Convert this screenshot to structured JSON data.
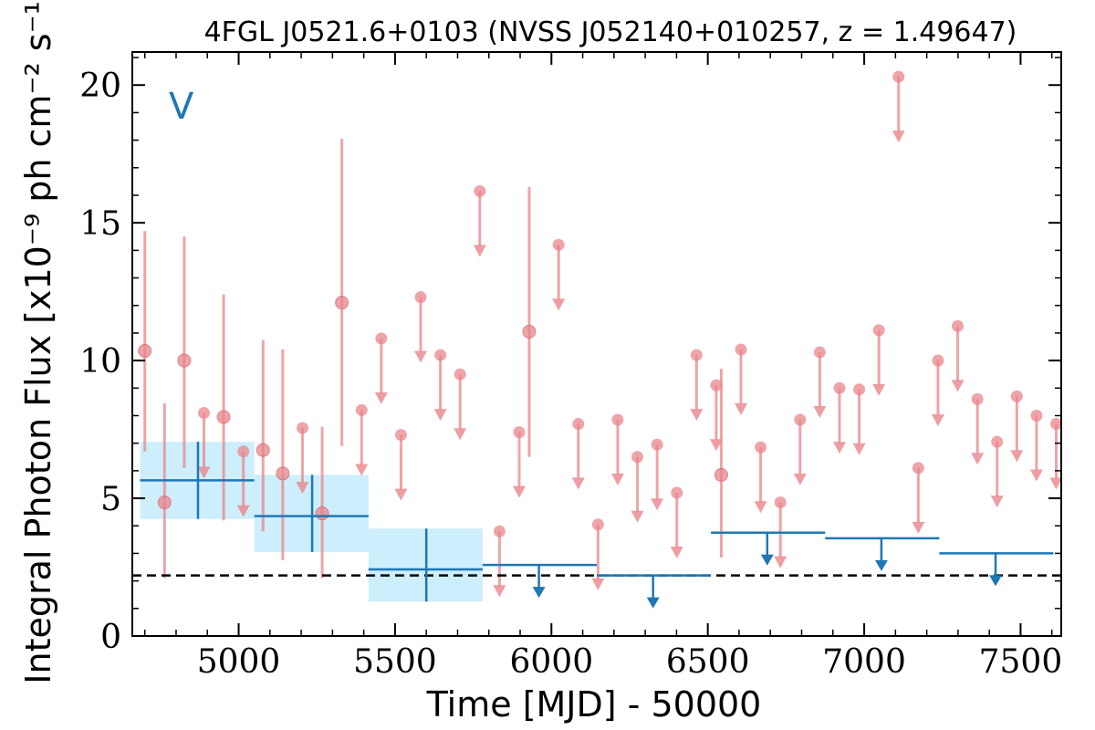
{
  "chart_data": {
    "type": "scatter",
    "title": "4FGL J0521.6+0103 (NVSS J052140+010257, z = 1.49647)",
    "xlabel": "Time [MJD] - 50000",
    "ylabel": "Integral Photon Flux [x10⁻⁹ ph cm⁻² s⁻¹]",
    "xlim": [
      4660,
      7630
    ],
    "ylim": [
      0,
      21.2
    ],
    "xticks": [
      5000,
      5500,
      6000,
      6500,
      7000,
      7500
    ],
    "yticks": [
      0,
      5,
      10,
      15,
      20
    ],
    "panel_label": "V",
    "grid": false,
    "reference_line": 2.2,
    "colors": {
      "short": "#e8868b",
      "long": "#1f77b4",
      "band": "#cdeefc",
      "reference": "#000000"
    },
    "short_bins": {
      "detections": [
        {
          "x": 4700,
          "y": 10.35,
          "ylo": 6.7,
          "yhi": 14.7
        },
        {
          "x": 4763,
          "y": 4.85,
          "ylo": 2.1,
          "yhi": 8.45
        },
        {
          "x": 4826,
          "y": 10.0,
          "ylo": 6.1,
          "yhi": 14.5
        },
        {
          "x": 4952,
          "y": 7.95,
          "ylo": 4.2,
          "yhi": 12.4
        },
        {
          "x": 5078,
          "y": 6.75,
          "ylo": 3.8,
          "yhi": 10.75
        },
        {
          "x": 5141,
          "y": 5.9,
          "ylo": 2.75,
          "yhi": 10.4
        },
        {
          "x": 5267,
          "y": 4.45,
          "ylo": 2.1,
          "yhi": 7.6
        },
        {
          "x": 5330,
          "y": 12.1,
          "ylo": 6.9,
          "yhi": 18.05
        },
        {
          "x": 5929,
          "y": 11.05,
          "ylo": 6.5,
          "yhi": 16.3
        },
        {
          "x": 6543,
          "y": 5.85,
          "ylo": 2.85,
          "yhi": 9.7
        }
      ],
      "upper_limits": [
        {
          "x": 4889,
          "y": 8.1
        },
        {
          "x": 5015,
          "y": 6.7
        },
        {
          "x": 5204,
          "y": 7.55
        },
        {
          "x": 5393,
          "y": 8.2
        },
        {
          "x": 5456,
          "y": 10.8
        },
        {
          "x": 5519,
          "y": 7.3
        },
        {
          "x": 5582,
          "y": 12.3
        },
        {
          "x": 5645,
          "y": 10.2
        },
        {
          "x": 5708,
          "y": 9.5
        },
        {
          "x": 5771,
          "y": 16.15
        },
        {
          "x": 5834,
          "y": 3.8
        },
        {
          "x": 5897,
          "y": 7.4
        },
        {
          "x": 6023,
          "y": 14.2
        },
        {
          "x": 6086,
          "y": 7.7
        },
        {
          "x": 6149,
          "y": 4.05
        },
        {
          "x": 6212,
          "y": 7.85
        },
        {
          "x": 6275,
          "y": 6.5
        },
        {
          "x": 6338,
          "y": 6.95
        },
        {
          "x": 6401,
          "y": 5.2
        },
        {
          "x": 6464,
          "y": 10.2
        },
        {
          "x": 6527,
          "y": 9.1
        },
        {
          "x": 6606,
          "y": 10.4
        },
        {
          "x": 6669,
          "y": 6.85
        },
        {
          "x": 6732,
          "y": 4.85
        },
        {
          "x": 6795,
          "y": 7.85
        },
        {
          "x": 6858,
          "y": 10.3
        },
        {
          "x": 6921,
          "y": 9.0
        },
        {
          "x": 6984,
          "y": 8.95
        },
        {
          "x": 7047,
          "y": 11.1
        },
        {
          "x": 7110,
          "y": 20.3
        },
        {
          "x": 7173,
          "y": 6.1
        },
        {
          "x": 7236,
          "y": 10.0
        },
        {
          "x": 7299,
          "y": 11.25
        },
        {
          "x": 7362,
          "y": 8.6
        },
        {
          "x": 7425,
          "y": 7.05
        },
        {
          "x": 7488,
          "y": 8.7
        },
        {
          "x": 7551,
          "y": 8.0
        },
        {
          "x": 7614,
          "y": 7.7
        }
      ]
    },
    "long_bins": {
      "detections": [
        {
          "x": 4870,
          "x0": 4685,
          "x1": 5050,
          "y": 5.65,
          "ylo": 4.25,
          "yhi": 7.05
        },
        {
          "x": 5235,
          "x0": 5050,
          "x1": 5415,
          "y": 4.35,
          "ylo": 3.05,
          "yhi": 5.85
        },
        {
          "x": 5600,
          "x0": 5415,
          "x1": 5780,
          "y": 2.42,
          "ylo": 1.25,
          "yhi": 3.9
        }
      ],
      "upper_limits": [
        {
          "x": 5960,
          "x0": 5780,
          "x1": 6145,
          "y": 2.58
        },
        {
          "x": 6325,
          "x0": 6145,
          "x1": 6510,
          "y": 2.2
        },
        {
          "x": 6690,
          "x0": 6510,
          "x1": 6875,
          "y": 3.75
        },
        {
          "x": 7055,
          "x0": 6875,
          "x1": 7240,
          "y": 3.55
        },
        {
          "x": 7420,
          "x0": 7240,
          "x1": 7605,
          "y": 3.0
        }
      ]
    }
  }
}
